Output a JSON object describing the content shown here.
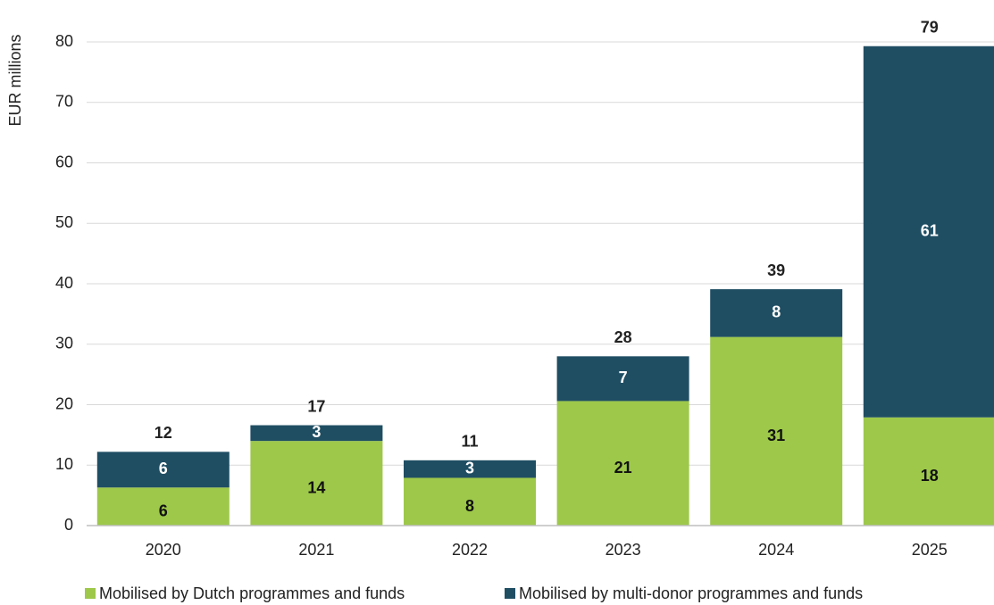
{
  "chart_data": {
    "type": "stacked_bar",
    "y_label": "EUR millions",
    "categories": [
      "2020",
      "2021",
      "2022",
      "2023",
      "2024",
      "2025"
    ],
    "series": [
      {
        "name": "Mobilised by Dutch programmes and funds",
        "color": "#9dc84a",
        "label_color": "#111111",
        "values": [
          6.3,
          14.0,
          7.9,
          20.6,
          31.2,
          17.9
        ],
        "value_labels": [
          "6",
          "14",
          "8",
          "21",
          "31",
          "18"
        ]
      },
      {
        "name": "Mobilised by multi-donor programmes and funds",
        "color": "#1f4e63",
        "label_color": "#ffffff",
        "values": [
          5.9,
          2.6,
          2.9,
          7.4,
          7.9,
          61.4
        ],
        "value_labels": [
          "6",
          "3",
          "3",
          "7",
          "8",
          "61"
        ]
      }
    ],
    "total_labels": [
      "12",
      "17",
      "11",
      "28",
      "39",
      "79"
    ],
    "ylim": [
      0,
      80
    ],
    "yticks": [
      0,
      10,
      20,
      30,
      40,
      50,
      60,
      70,
      80
    ],
    "grid": true
  }
}
